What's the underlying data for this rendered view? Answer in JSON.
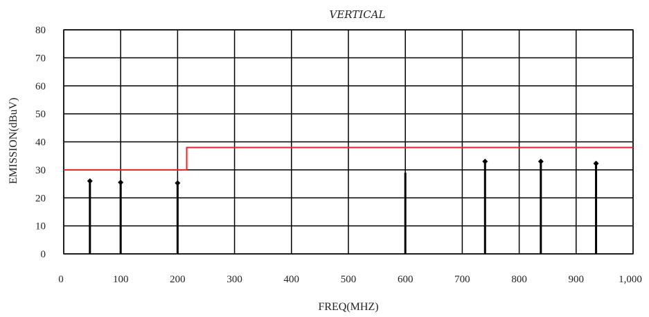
{
  "chart_data": {
    "type": "scatter",
    "title": "VERTICAL",
    "xlabel": "FREQ(MHZ)",
    "ylabel": "EMISSION(dBuV)",
    "xlim": [
      0,
      1000
    ],
    "ylim": [
      0,
      80
    ],
    "grid": true,
    "x_ticks": [
      "0",
      "100",
      "200",
      "300",
      "400",
      "500",
      "600",
      "700",
      "800",
      "900",
      "1,000"
    ],
    "y_ticks": [
      "0",
      "10",
      "20",
      "30",
      "40",
      "50",
      "60",
      "70",
      "80"
    ],
    "series": [
      {
        "style": "stem",
        "color": "#000000",
        "points": [
          {
            "x": 46,
            "y": 26
          },
          {
            "x": 100,
            "y": 25.5
          },
          {
            "x": 200,
            "y": 25.3
          },
          {
            "x": 600,
            "y": 29
          },
          {
            "x": 740,
            "y": 33
          },
          {
            "x": 838,
            "y": 33
          },
          {
            "x": 935,
            "y": 32.3
          }
        ]
      }
    ],
    "limit_line": {
      "color": "#e8252a",
      "points": [
        {
          "x": 0,
          "y": 30
        },
        {
          "x": 216,
          "y": 30
        },
        {
          "x": 216,
          "y": 38
        },
        {
          "x": 1000,
          "y": 38
        }
      ]
    }
  }
}
